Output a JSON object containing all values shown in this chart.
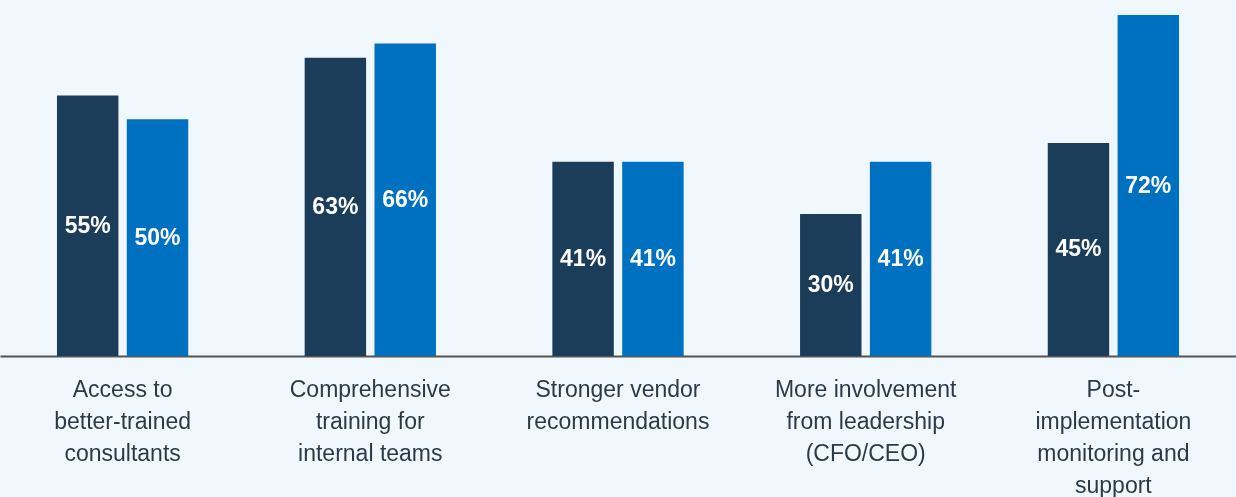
{
  "chart_data": {
    "type": "bar",
    "categories": [
      "Access to better-trained consultants",
      "Comprehensive training for internal teams",
      "Stronger vendor recommendations",
      "More involvement from leadership (CFO/CEO)",
      "Post-implementation monitoring and support"
    ],
    "series": [
      {
        "color": "#1c3d5a",
        "values": [
          55,
          63,
          41,
          30,
          45
        ],
        "value_labels": [
          "55%",
          "63%",
          "41%",
          "30%",
          "45%"
        ]
      },
      {
        "color": "#0070c0",
        "values": [
          50,
          66,
          41,
          41,
          72
        ],
        "value_labels": [
          "50%",
          "66%",
          "41%",
          "41%",
          "72%"
        ]
      }
    ],
    "grid": false,
    "legend": false
  }
}
